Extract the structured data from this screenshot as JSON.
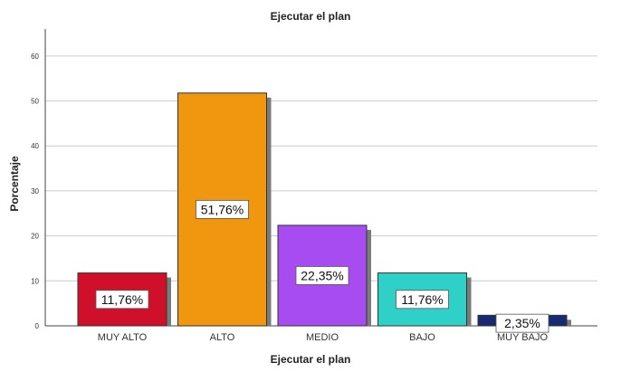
{
  "chart_data": {
    "type": "bar",
    "title": "Ejecutar el plan",
    "xlabel": "Ejecutar el plan",
    "ylabel": "Porcentaje",
    "categories": [
      "MUY ALTO",
      "ALTO",
      "MEDIO",
      "BAJO",
      "MUY BAJO"
    ],
    "values": [
      11.76,
      51.76,
      22.35,
      11.76,
      2.35
    ],
    "data_labels": [
      "11,76%",
      "51,76%",
      "22,35%",
      "11,76%",
      "2,35%"
    ],
    "bar_colors": [
      "#d0102a",
      "#f0960f",
      "#a64cf0",
      "#2fd0c8",
      "#152a72"
    ],
    "ylim": [
      0,
      66
    ],
    "yticks": [
      "0",
      "10",
      "20",
      "30",
      "40",
      "50",
      "60"
    ],
    "grid": true,
    "legend": "none"
  }
}
